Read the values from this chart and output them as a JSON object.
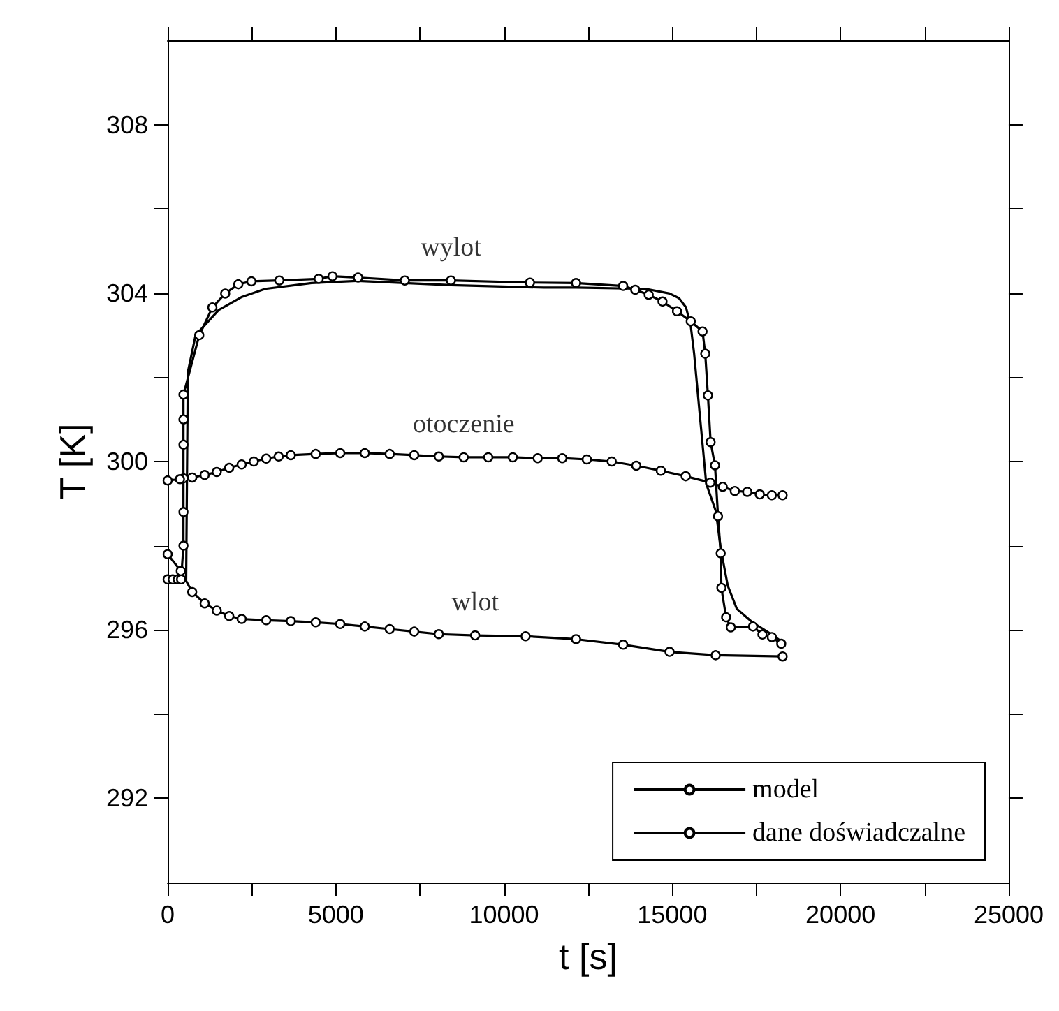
{
  "chart_data": {
    "type": "line",
    "xlabel": "t [s]",
    "ylabel": "T [K]",
    "xlim": [
      0,
      25000
    ],
    "ylim": [
      290,
      310
    ],
    "xticks": [
      0,
      {
        "value": 2500,
        "label": null
      },
      5000,
      {
        "value": 7500,
        "label": null
      },
      10000,
      {
        "value": 12500,
        "label": null
      },
      15000,
      {
        "value": 17500,
        "label": null
      },
      20000,
      {
        "value": 22500,
        "label": null
      },
      25000
    ],
    "yticks": [
      292,
      {
        "value": 294,
        "label": null
      },
      296,
      {
        "value": 298,
        "label": null
      },
      300,
      {
        "value": 302,
        "label": null
      },
      304,
      {
        "value": 306,
        "label": null
      },
      308
    ],
    "grid": false,
    "legend": "bottom right",
    "annotations": [
      "wylot",
      "otoczenie",
      "wlot"
    ],
    "series": [
      {
        "name": "model",
        "color": "#000000",
        "marker": "none",
        "line_style": "solid",
        "x": [
          550,
          600,
          830,
          1520,
          2210,
          2900,
          4280,
          5660,
          8430,
          11190,
          12140,
          14220,
          14920,
          15200,
          15410,
          15550,
          15650,
          15830,
          16010,
          16300,
          16440,
          16650,
          16920,
          17400,
          17960,
          18240
        ],
        "values": [
          297.2,
          302.12,
          303.0,
          303.6,
          303.91,
          304.1,
          304.24,
          304.29,
          304.19,
          304.13,
          304.13,
          304.1,
          303.99,
          303.88,
          303.66,
          303.22,
          302.56,
          301.01,
          299.47,
          298.81,
          297.93,
          297.05,
          296.5,
          296.17,
          295.89,
          295.73
        ]
      },
      {
        "name": "dane doświadczalne",
        "color": "#000000",
        "marker": "circle",
        "line_style": "solid",
        "x": [
          0,
          150,
          300,
          400,
          470,
          470,
          470,
          470,
          470,
          470,
          940,
          1330,
          1710,
          2100,
          2490,
          3320,
          4490,
          4900,
          5660,
          7050,
          8420,
          10770,
          12140,
          13540,
          13900,
          14300,
          14710,
          15140,
          15550,
          15900,
          15980,
          16060,
          16140,
          16270,
          16360,
          16440,
          16460,
          16600,
          16740,
          17400,
          17680,
          17960,
          18240
        ],
        "values": [
          297.2,
          297.2,
          297.2,
          297.2,
          298.0,
          298.8,
          299.6,
          300.4,
          301.0,
          301.59,
          303.0,
          303.66,
          303.99,
          304.21,
          304.28,
          304.3,
          304.34,
          304.4,
          304.37,
          304.3,
          304.3,
          304.25,
          304.24,
          304.17,
          304.08,
          303.96,
          303.8,
          303.57,
          303.33,
          303.09,
          302.56,
          301.57,
          300.46,
          299.91,
          298.7,
          297.82,
          297.0,
          296.3,
          296.06,
          296.08,
          295.89,
          295.83,
          295.67
        ]
      },
      {
        "color": "#000000",
        "marker": "circle",
        "line_style": "solid",
        "x": [
          0,
          365,
          730,
          1100,
          1460,
          1830,
          2200,
          2560,
          2930,
          3300,
          3660,
          4400,
          5130,
          5860,
          6600,
          7330,
          8060,
          8800,
          9530,
          10260,
          11000,
          11730,
          12460,
          13200,
          13930,
          14660,
          15400,
          16130,
          16500,
          16860,
          17230,
          17600,
          17960,
          18280
        ],
        "values": [
          299.55,
          299.58,
          299.62,
          299.68,
          299.75,
          299.85,
          299.93,
          300.0,
          300.07,
          300.12,
          300.15,
          300.18,
          300.2,
          300.2,
          300.18,
          300.15,
          300.12,
          300.1,
          300.1,
          300.1,
          300.08,
          300.08,
          300.05,
          300.0,
          299.9,
          299.78,
          299.65,
          299.5,
          299.4,
          299.3,
          299.28,
          299.22,
          299.2,
          299.2
        ]
      },
      {
        "color": "#000000",
        "marker": "circle",
        "line_style": "solid",
        "x": [
          0,
          390,
          730,
          1100,
          1460,
          1830,
          2200,
          2930,
          3660,
          4400,
          5130,
          5860,
          6600,
          7330,
          8060,
          9140,
          10640,
          12140,
          13540,
          14920,
          16290,
          18280
        ],
        "values": [
          297.8,
          297.4,
          296.9,
          296.63,
          296.46,
          296.33,
          296.26,
          296.23,
          296.21,
          296.18,
          296.14,
          296.08,
          296.02,
          295.96,
          295.9,
          295.87,
          295.85,
          295.78,
          295.65,
          295.48,
          295.4,
          295.37
        ]
      }
    ]
  }
}
